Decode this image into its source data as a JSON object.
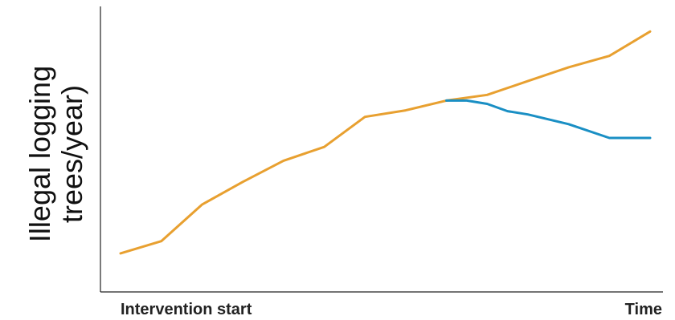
{
  "chart_data": {
    "type": "line",
    "xlabel_left": "Intervention start",
    "xlabel_right": "Time",
    "ylabel_line1": "Illegal logging",
    "ylabel_line2": "trees/year)",
    "grid": false,
    "series": [
      {
        "color": "#e8a030",
        "x": [
          0,
          1,
          2,
          3,
          4,
          5,
          6,
          7,
          8,
          9,
          10,
          11,
          12,
          13
        ],
        "y": [
          5,
          20,
          65,
          93,
          119,
          136,
          173,
          181,
          193,
          200,
          217,
          234,
          248,
          278
        ]
      },
      {
        "color": "#1a8fc4",
        "x": [
          8,
          8.5,
          9,
          9.5,
          10,
          11,
          12,
          13
        ],
        "y": [
          193,
          193,
          189,
          180,
          176,
          164,
          147,
          147
        ]
      }
    ],
    "x_range": [
      0,
      13
    ],
    "y_range": [
      0,
      300
    ]
  }
}
